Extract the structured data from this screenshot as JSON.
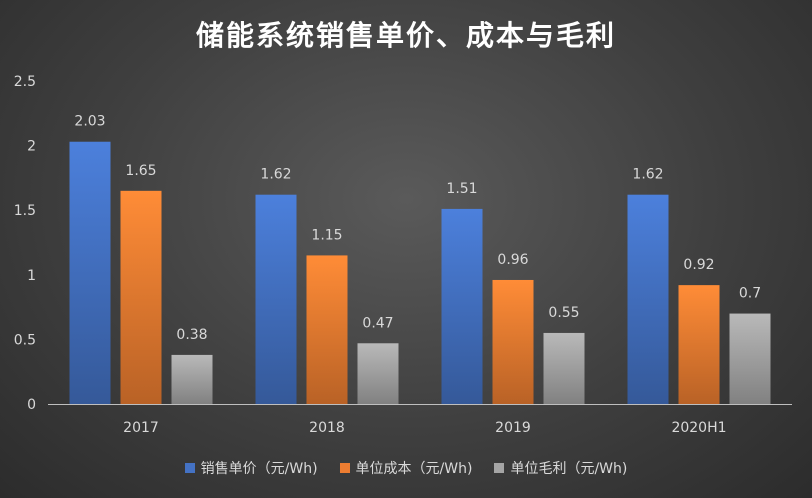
{
  "chart_data": {
    "type": "bar",
    "title": "储能系统销售单价、成本与毛利",
    "categories": [
      "2017",
      "2018",
      "2019",
      "2020H1"
    ],
    "ylim": [
      0,
      2.5
    ],
    "yticks": [
      "0",
      "0.5",
      "1",
      "1.5",
      "2",
      "2.5"
    ],
    "grid": false,
    "legend_position": "bottom",
    "series": [
      {
        "name": "销售单价（元/Wh)",
        "values": [
          2.03,
          1.62,
          1.51,
          1.62
        ],
        "labels": [
          "2.03",
          "1.62",
          "1.51",
          "1.62"
        ],
        "color": "#4472c4"
      },
      {
        "name": "单位成本（元/Wh)",
        "values": [
          1.65,
          1.15,
          0.96,
          0.92
        ],
        "labels": [
          "1.65",
          "1.15",
          "0.96",
          "0.92"
        ],
        "color": "#ed7d31"
      },
      {
        "name": "单位毛利（元/Wh)",
        "values": [
          0.38,
          0.47,
          0.55,
          0.7
        ],
        "labels": [
          "0.38",
          "0.47",
          "0.55",
          "0.7"
        ],
        "color": "#a5a5a5"
      }
    ]
  }
}
